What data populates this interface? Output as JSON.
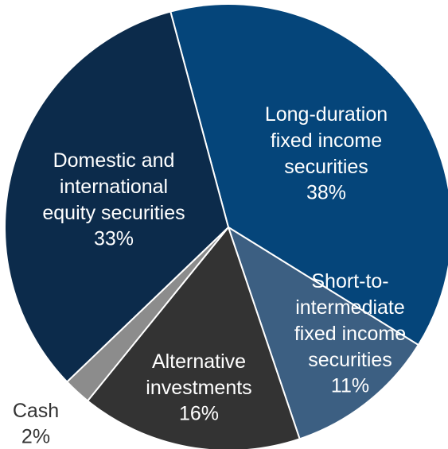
{
  "chart_data": {
    "type": "pie",
    "categories": [
      "Long-duration\nfixed income\nsecurities",
      "Short-to-\nintermediate\nfixed income\nsecurities",
      "Alternative\ninvestments",
      "Cash",
      "Domestic and\ninternational\nequity securities"
    ],
    "values": [
      38,
      11,
      16,
      2,
      33
    ],
    "value_labels": [
      "38%",
      "11%",
      "16%",
      "2%",
      "33%"
    ],
    "colors": [
      "#05457a",
      "#3c5f82",
      "#333333",
      "#8c8c8c",
      "#0c2b4b"
    ]
  }
}
